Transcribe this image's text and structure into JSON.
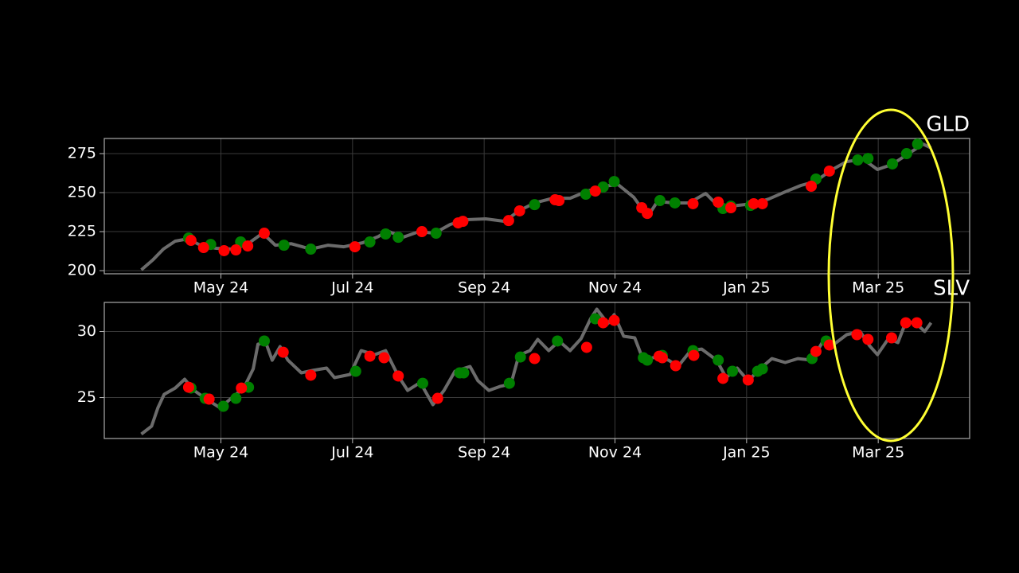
{
  "chart_data": [
    {
      "type": "line",
      "title": "GLD",
      "grid": true,
      "xlim": [
        2024.185,
        2025.283
      ],
      "xticks": [
        {
          "value": 2024.333,
          "label": "May 24"
        },
        {
          "value": 2024.5,
          "label": "Jul 24"
        },
        {
          "value": 2024.667,
          "label": "Sep 24"
        },
        {
          "value": 2024.833,
          "label": "Nov 24"
        },
        {
          "value": 2025.0,
          "label": "Jan 25"
        },
        {
          "value": 2025.167,
          "label": "Mar 25"
        }
      ],
      "ylim": [
        198,
        284.7
      ],
      "yticks": [
        200,
        225,
        250,
        275
      ],
      "series": [
        {
          "type": "line",
          "color": "#6b6b6b",
          "x": [
            2024.232,
            2024.247,
            2024.26,
            2024.275,
            2024.291,
            2024.307,
            2024.327,
            2024.348,
            2024.366,
            2024.386,
            2024.402,
            2024.422,
            2024.447,
            2024.469,
            2024.489,
            2024.513,
            2024.533,
            2024.544,
            2024.564,
            2024.584,
            2024.604,
            2024.624,
            2024.645,
            2024.669,
            2024.693,
            2024.711,
            2024.731,
            2024.754,
            2024.776,
            2024.798,
            2024.818,
            2024.837,
            2024.857,
            2024.867,
            2024.877,
            2024.887,
            2024.907,
            2024.927,
            2024.948,
            2024.968,
            2024.988,
            2025.008,
            2025.028,
            2025.049,
            2025.069,
            2025.087,
            2025.107,
            2025.127,
            2025.148,
            2025.166,
            2025.184,
            2025.204,
            2025.224,
            2025.234
          ],
          "values": [
            200.5,
            207.1,
            213.8,
            218.9,
            220.4,
            216.3,
            214.3,
            213.8,
            216.8,
            224.0,
            216.3,
            217.3,
            213.8,
            216.3,
            215.3,
            217.9,
            221.9,
            225.5,
            221.4,
            225.0,
            224.0,
            229.6,
            232.7,
            233.2,
            231.6,
            238.3,
            243.4,
            246.4,
            246.4,
            251.0,
            254.1,
            255.1,
            246.9,
            239.8,
            236.7,
            244.4,
            243.4,
            243.4,
            249.5,
            239.3,
            241.8,
            242.9,
            245.9,
            250.5,
            254.6,
            257.1,
            264.3,
            269.9,
            271.4,
            264.8,
            267.9,
            274.5,
            281.1,
            278.6
          ]
        },
        {
          "type": "scatter",
          "color": "#008000",
          "x": [
            2024.292,
            2024.32,
            2024.358,
            2024.413,
            2024.447,
            2024.522,
            2024.542,
            2024.558,
            2024.606,
            2024.731,
            2024.796,
            2024.818,
            2024.832,
            2024.89,
            2024.909,
            2024.97,
            2024.98,
            2025.005,
            2025.088,
            2025.141,
            2025.154,
            2025.185,
            2025.203,
            2025.217
          ],
          "values": [
            220.9,
            216.8,
            218.4,
            216.3,
            213.8,
            218.4,
            223.5,
            221.4,
            224.0,
            242.3,
            249.0,
            253.6,
            257.1,
            244.9,
            243.4,
            239.8,
            241.3,
            241.8,
            258.7,
            270.9,
            271.9,
            268.4,
            275.0,
            281.1
          ]
        },
        {
          "type": "scatter",
          "color": "#ff0000",
          "x": [
            2024.295,
            2024.311,
            2024.337,
            2024.352,
            2024.367,
            2024.388,
            2024.503,
            2024.588,
            2024.634,
            2024.64,
            2024.698,
            2024.712,
            2024.757,
            2024.762,
            2024.808,
            2024.867,
            2024.874,
            2024.932,
            2024.964,
            2024.98,
            2025.009,
            2025.02,
            2025.082,
            2025.105
          ],
          "values": [
            219.4,
            214.8,
            212.8,
            213.3,
            215.8,
            224.0,
            215.3,
            225.0,
            230.6,
            231.6,
            232.1,
            238.3,
            245.4,
            244.9,
            251.0,
            240.3,
            236.7,
            242.9,
            243.9,
            240.3,
            242.9,
            242.9,
            254.1,
            263.8
          ]
        }
      ]
    },
    {
      "type": "line",
      "title": "SLV",
      "grid": true,
      "xlim": [
        2024.185,
        2025.283
      ],
      "xticks": [
        {
          "value": 2024.333,
          "label": "May 24"
        },
        {
          "value": 2024.5,
          "label": "Jul 24"
        },
        {
          "value": 2024.667,
          "label": "Sep 24"
        },
        {
          "value": 2024.833,
          "label": "Nov 24"
        },
        {
          "value": 2025.0,
          "label": "Jan 25"
        },
        {
          "value": 2025.167,
          "label": "Mar 25"
        }
      ],
      "ylim": [
        21.9,
        32.2
      ],
      "yticks": [
        25,
        30
      ],
      "series": [
        {
          "type": "line",
          "color": "#6b6b6b",
          "x": [
            2024.232,
            2024.245,
            2024.253,
            2024.261,
            2024.275,
            2024.287,
            2024.299,
            2024.313,
            2024.332,
            2024.346,
            2024.362,
            2024.374,
            2024.38,
            2024.39,
            2024.398,
            2024.408,
            2024.418,
            2024.435,
            2024.449,
            2024.467,
            2024.477,
            2024.497,
            2024.511,
            2024.528,
            2024.542,
            2024.558,
            2024.57,
            2024.586,
            2024.602,
            2024.616,
            2024.63,
            2024.649,
            2024.659,
            2024.673,
            2024.687,
            2024.701,
            2024.711,
            2024.725,
            2024.735,
            2024.749,
            2024.762,
            2024.776,
            2024.79,
            2024.802,
            2024.81,
            2024.824,
            2024.832,
            2024.844,
            2024.858,
            2024.869,
            2024.885,
            2024.901,
            2024.913,
            2024.929,
            2024.943,
            2024.962,
            2024.974,
            2024.988,
            2025.002,
            2025.018,
            2025.032,
            2025.049,
            2025.065,
            2025.083,
            2025.097,
            2025.111,
            2025.127,
            2025.144,
            2025.156,
            2025.166,
            2025.18,
            2025.192,
            2025.202,
            2025.214,
            2025.226,
            2025.234
          ],
          "values": [
            22.23,
            22.83,
            24.22,
            25.24,
            25.72,
            26.39,
            25.54,
            24.94,
            24.22,
            24.94,
            25.72,
            27.17,
            29.04,
            29.16,
            27.83,
            28.86,
            27.83,
            26.87,
            27.05,
            27.23,
            26.51,
            26.75,
            28.55,
            28.25,
            28.55,
            26.63,
            25.54,
            26.14,
            24.46,
            25.54,
            26.99,
            27.35,
            26.27,
            25.54,
            25.84,
            26.02,
            28.19,
            28.55,
            29.4,
            28.55,
            29.28,
            28.55,
            29.46,
            30.96,
            31.69,
            30.6,
            31.27,
            29.64,
            29.52,
            27.83,
            28.07,
            27.83,
            27.35,
            28.55,
            28.67,
            27.83,
            26.51,
            27.23,
            26.27,
            27.23,
            27.95,
            27.65,
            27.95,
            27.83,
            29.28,
            29.04,
            29.76,
            30.0,
            28.92,
            28.25,
            29.46,
            29.16,
            30.72,
            30.66,
            30.0,
            30.66
          ]
        },
        {
          "type": "scatter",
          "color": "#008000",
          "x": [
            2024.295,
            2024.313,
            2024.336,
            2024.352,
            2024.368,
            2024.388,
            2024.504,
            2024.589,
            2024.636,
            2024.641,
            2024.699,
            2024.713,
            2024.76,
            2024.808,
            2024.869,
            2024.874,
            2024.893,
            2024.932,
            2024.964,
            2024.982,
            2025.014,
            2025.02,
            2025.083,
            2025.101
          ],
          "values": [
            25.72,
            24.94,
            24.34,
            24.94,
            25.78,
            29.28,
            26.99,
            26.08,
            26.87,
            26.87,
            26.08,
            28.07,
            29.28,
            30.96,
            28.01,
            27.83,
            28.19,
            28.55,
            27.83,
            26.99,
            26.99,
            27.17,
            27.95,
            29.28
          ]
        },
        {
          "type": "scatter",
          "color": "#ff0000",
          "x": [
            2024.292,
            2024.318,
            2024.359,
            2024.412,
            2024.447,
            2024.522,
            2024.54,
            2024.558,
            2024.608,
            2024.731,
            2024.797,
            2024.818,
            2024.832,
            2024.889,
            2024.893,
            2024.91,
            2024.933,
            2024.97,
            2025.002,
            2025.088,
            2025.105,
            2025.14,
            2025.154,
            2025.184,
            2025.202,
            2025.216
          ],
          "values": [
            25.78,
            24.88,
            25.72,
            28.43,
            26.69,
            28.13,
            28.01,
            26.63,
            24.94,
            27.95,
            28.8,
            30.66,
            30.84,
            28.13,
            28.01,
            27.41,
            28.19,
            26.45,
            26.33,
            28.49,
            28.98,
            29.76,
            29.4,
            29.52,
            30.66,
            30.66
          ]
        }
      ]
    }
  ]
}
